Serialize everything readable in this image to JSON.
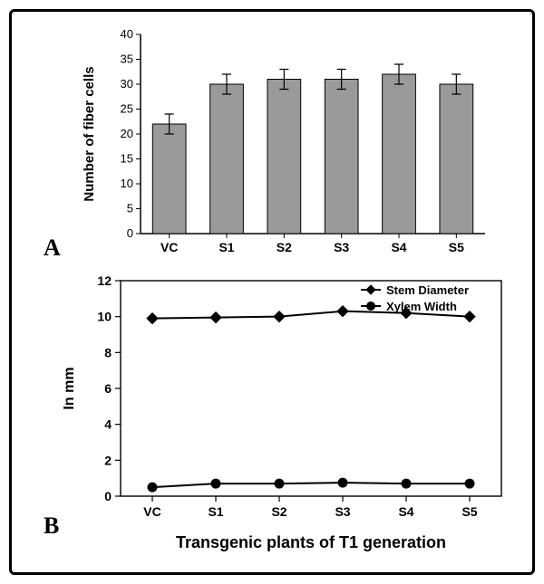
{
  "panelA": {
    "type": "bar",
    "label": "A",
    "categories": [
      "VC",
      "S1",
      "S2",
      "S3",
      "S4",
      "S5"
    ],
    "values": [
      22,
      30,
      31,
      31,
      32,
      30
    ],
    "errors": [
      2,
      2,
      2,
      2,
      2,
      2
    ],
    "bar_color": "#9a9a9a",
    "border_color": "#000000",
    "error_color": "#000000",
    "ylabel": "Number of fiber cells",
    "yticks": [
      0,
      5,
      10,
      15,
      20,
      25,
      30,
      35,
      40
    ],
    "ylim": [
      0,
      40
    ],
    "tick_fontsize": 13,
    "label_fontsize": 15,
    "background": "#ffffff",
    "bar_width": 0.58
  },
  "panelB": {
    "type": "line",
    "label": "B",
    "categories": [
      "VC",
      "S1",
      "S2",
      "S3",
      "S4",
      "S5"
    ],
    "series": [
      {
        "name": "Stem Diameter",
        "marker": "diamond",
        "values": [
          9.9,
          9.95,
          10.0,
          10.3,
          10.2,
          10.0
        ],
        "color": "#000000"
      },
      {
        "name": "Xylem Width",
        "marker": "circle",
        "values": [
          0.5,
          0.7,
          0.7,
          0.75,
          0.7,
          0.7
        ],
        "color": "#000000"
      }
    ],
    "ylabel": "In mm",
    "xlabel": "Transgenic plants of T1 generation",
    "yticks": [
      0,
      2,
      4,
      6,
      8,
      10,
      12
    ],
    "ylim": [
      0,
      12
    ],
    "tick_fontsize": 14,
    "label_fontsize": 16,
    "xlabel_fontsize": 18,
    "line_color": "#000000",
    "background": "#ffffff"
  },
  "colors": {
    "frame_border": "#000000",
    "axis": "#000000",
    "text": "#000000"
  }
}
